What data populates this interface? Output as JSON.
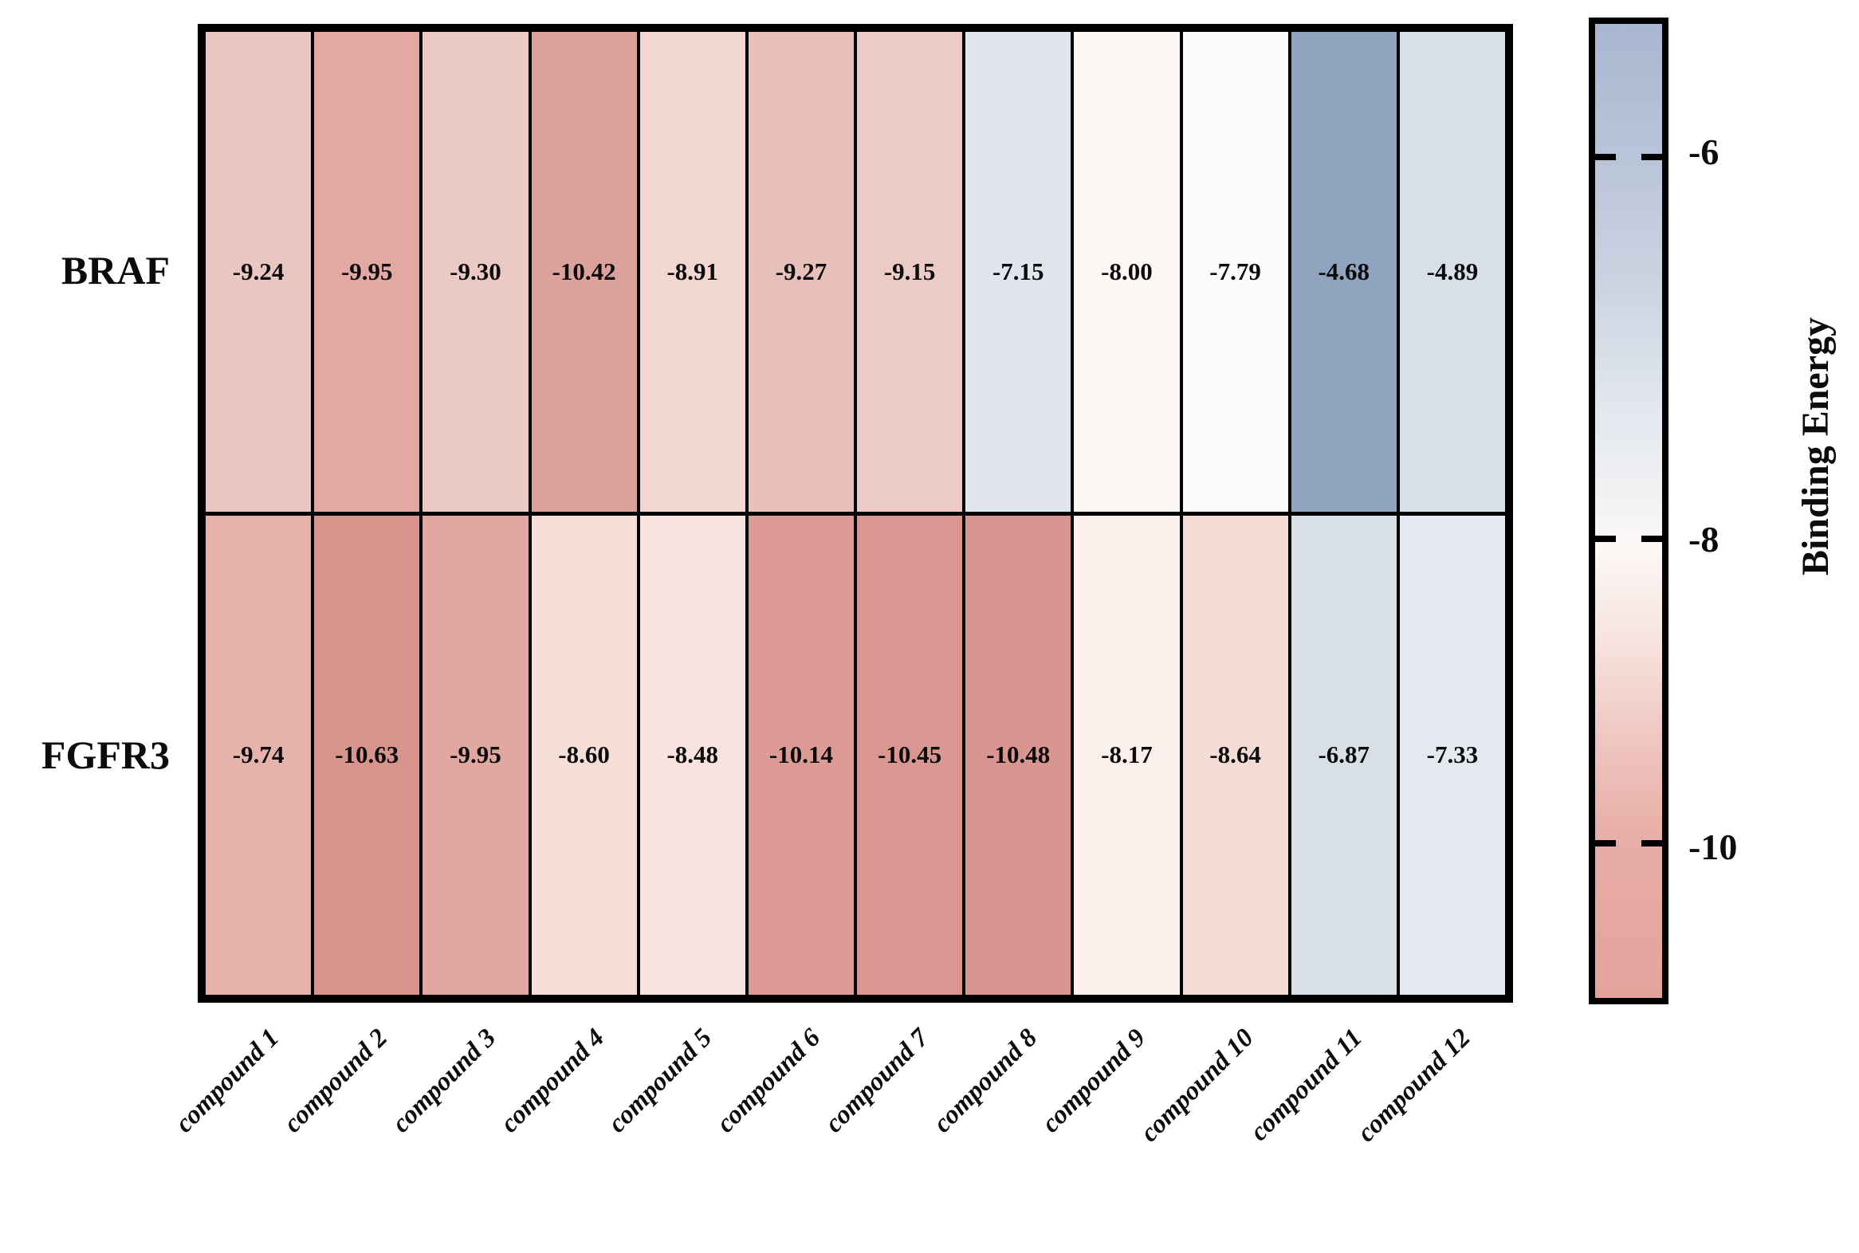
{
  "chart_data": {
    "type": "heatmap",
    "title": "",
    "xlabel": "",
    "ylabel": "",
    "rows": [
      "BRAF",
      "FGFR3"
    ],
    "categories": [
      "compound 1",
      "compound 2",
      "compound 3",
      "compound 4",
      "compound 5",
      "compound 6",
      "compound 7",
      "compound 8",
      "compound 9",
      "compound 10",
      "compound 11",
      "compound 12"
    ],
    "series": [
      {
        "name": "BRAF",
        "values": [
          -9.24,
          -9.95,
          -9.3,
          -10.42,
          -8.91,
          -9.27,
          -9.15,
          -7.15,
          -8.0,
          -7.79,
          -4.68,
          -4.89
        ],
        "value_labels": [
          "-9.24",
          "-9.95",
          "-9.30",
          "-10.42",
          "-8.91",
          "-9.27",
          "-9.15",
          "-7.15",
          "-8.00",
          "-7.79",
          "-4.68",
          "-4.89"
        ],
        "cell_colors": [
          "#eac6c0",
          "#e2a8a2",
          "#ebc9c4",
          "#dda19b",
          "#f2d6d0",
          "#e8c0ba",
          "#eccac5",
          "#e0e5ee",
          "#fdf7f5",
          "#fcfbfb",
          "#90a3bf",
          "#d9dfe9"
        ]
      },
      {
        "name": "FGFR3",
        "values": [
          -9.74,
          -10.63,
          -9.95,
          -8.6,
          -8.48,
          -10.14,
          -10.45,
          -10.48,
          -8.17,
          -8.64,
          -6.87,
          -7.33
        ],
        "value_labels": [
          "-9.74",
          "-10.63",
          "-9.95",
          "-8.60",
          "-8.48",
          "-10.14",
          "-10.45",
          "-10.48",
          "-8.17",
          "-8.64",
          "-6.87",
          "-7.33"
        ],
        "cell_colors": [
          "#e6b3ac",
          "#d9948e",
          "#e1a7a0",
          "#f6ded8",
          "#f8e3de",
          "#dc9b95",
          "#da9791",
          "#d99690",
          "#fbf0ec",
          "#f3dcd6",
          "#d9dfe7",
          "#e4e9f0"
        ]
      }
    ],
    "colorbar": {
      "label": "Binding Energy",
      "ticks": [
        "-6",
        "-8",
        "-10"
      ],
      "tick_values": [
        -6,
        -8,
        -10
      ],
      "gradient_top_color": "#a8b7d0",
      "gradient_mid_color": "#fcf8f6",
      "gradient_bottom_color": "#e3a39c"
    },
    "grid_border_color": "#000000",
    "legend_position": "right-colorbar"
  }
}
